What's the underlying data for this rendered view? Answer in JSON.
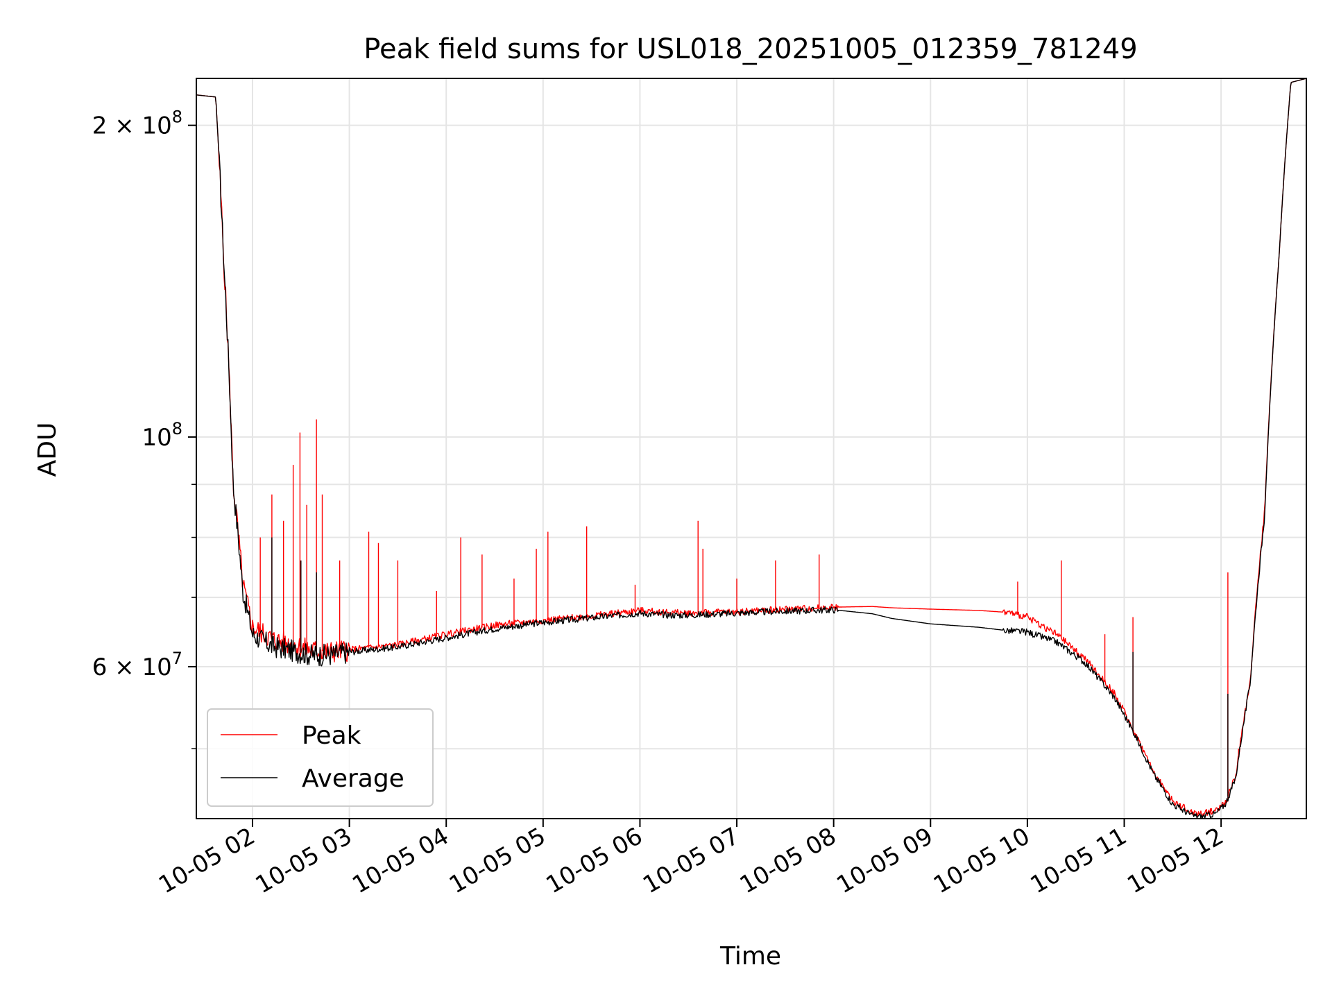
{
  "chart_data": {
    "type": "line",
    "title": "Peak field sums for USL018_20251005_012359_781249",
    "xlabel": "Time",
    "ylabel": "ADU",
    "yscale": "log",
    "ylim": [
      42800000,
      222000000
    ],
    "xlim_hours": [
      1.42,
      12.88
    ],
    "x_ticks": [
      {
        "hour": 2,
        "label": "10-05 02"
      },
      {
        "hour": 3,
        "label": "10-05 03"
      },
      {
        "hour": 4,
        "label": "10-05 04"
      },
      {
        "hour": 5,
        "label": "10-05 05"
      },
      {
        "hour": 6,
        "label": "10-05 06"
      },
      {
        "hour": 7,
        "label": "10-05 07"
      },
      {
        "hour": 8,
        "label": "10-05 08"
      },
      {
        "hour": 9,
        "label": "10-05 09"
      },
      {
        "hour": 10,
        "label": "10-05 10"
      },
      {
        "hour": 11,
        "label": "10-05 11"
      },
      {
        "hour": 12,
        "label": "10-05 12"
      }
    ],
    "y_major_ticks": [
      {
        "value": 60000000,
        "mant": "6",
        "exp": "7"
      },
      {
        "value": 100000000,
        "mant": "",
        "exp": "8"
      },
      {
        "value": 200000000,
        "mant": "2",
        "exp": "8"
      }
    ],
    "y_minor_grid": [
      50000000,
      70000000,
      80000000,
      90000000
    ],
    "grid": true,
    "legend_position": "lower-left",
    "series": [
      {
        "name": "Peak",
        "color": "#ff0000",
        "x_hours": [
          1.42,
          1.62,
          1.7,
          1.8,
          1.9,
          2.0,
          2.2,
          2.4,
          2.6,
          2.8,
          3.0,
          3.5,
          4.0,
          4.5,
          5.0,
          5.5,
          6.0,
          6.3,
          6.5,
          7.0,
          7.5,
          8.0,
          8.4,
          8.6,
          9.0,
          9.5,
          9.8,
          10.0,
          10.3,
          10.6,
          10.9,
          11.1,
          11.3,
          11.5,
          11.7,
          11.8,
          11.95,
          12.05,
          12.15,
          12.3,
          12.45,
          12.6,
          12.72,
          12.88
        ],
        "values": [
          214000000,
          213000000,
          150000000,
          90000000,
          72000000,
          65500000,
          63800000,
          63000000,
          62300000,
          62000000,
          62300000,
          63000000,
          64500000,
          65800000,
          66500000,
          67200000,
          68000000,
          67700000,
          67600000,
          67800000,
          68200000,
          68500000,
          68600000,
          68400000,
          68200000,
          68000000,
          67700000,
          67000000,
          64500000,
          61000000,
          56500000,
          52000000,
          47500000,
          44500000,
          43400000,
          43300000,
          43600000,
          44500000,
          47000000,
          58000000,
          85000000,
          150000000,
          220000000,
          222000000
        ],
        "spikes": [
          {
            "hour": 2.08,
            "value": 80000000
          },
          {
            "hour": 2.2,
            "value": 88000000
          },
          {
            "hour": 2.32,
            "value": 83000000
          },
          {
            "hour": 2.42,
            "value": 94000000
          },
          {
            "hour": 2.49,
            "value": 101000000
          },
          {
            "hour": 2.56,
            "value": 86000000
          },
          {
            "hour": 2.66,
            "value": 104000000
          },
          {
            "hour": 2.72,
            "value": 88000000
          },
          {
            "hour": 2.9,
            "value": 76000000
          },
          {
            "hour": 3.2,
            "value": 81000000
          },
          {
            "hour": 3.3,
            "value": 79000000
          },
          {
            "hour": 3.5,
            "value": 76000000
          },
          {
            "hour": 3.9,
            "value": 71000000
          },
          {
            "hour": 4.15,
            "value": 80000000
          },
          {
            "hour": 4.37,
            "value": 77000000
          },
          {
            "hour": 4.7,
            "value": 73000000
          },
          {
            "hour": 4.93,
            "value": 78000000
          },
          {
            "hour": 5.05,
            "value": 81000000
          },
          {
            "hour": 5.45,
            "value": 82000000
          },
          {
            "hour": 5.95,
            "value": 72000000
          },
          {
            "hour": 6.6,
            "value": 83000000
          },
          {
            "hour": 6.65,
            "value": 78000000
          },
          {
            "hour": 7.0,
            "value": 73000000
          },
          {
            "hour": 7.4,
            "value": 76000000
          },
          {
            "hour": 7.85,
            "value": 77000000
          },
          {
            "hour": 9.9,
            "value": 72500000
          },
          {
            "hour": 10.35,
            "value": 76000000
          },
          {
            "hour": 10.8,
            "value": 64500000
          },
          {
            "hour": 11.09,
            "value": 67000000
          },
          {
            "hour": 11.9,
            "value": 43800000
          },
          {
            "hour": 12.02,
            "value": 44000000
          },
          {
            "hour": 12.07,
            "value": 74000000
          },
          {
            "hour": 12.18,
            "value": 50000000
          }
        ]
      },
      {
        "name": "Average",
        "color": "#000000",
        "x_hours": [
          1.42,
          1.62,
          1.7,
          1.8,
          1.9,
          2.0,
          2.2,
          2.4,
          2.6,
          2.8,
          3.0,
          3.5,
          4.0,
          4.5,
          5.0,
          5.5,
          6.0,
          6.3,
          6.5,
          7.0,
          7.5,
          8.0,
          8.4,
          8.6,
          9.0,
          9.5,
          9.8,
          10.0,
          10.3,
          10.6,
          10.9,
          11.1,
          11.3,
          11.5,
          11.7,
          11.8,
          11.95,
          12.05,
          12.15,
          12.3,
          12.45,
          12.6,
          12.72,
          12.88
        ],
        "values": [
          214000000,
          213000000,
          150000000,
          90000000,
          71000000,
          64500000,
          62800000,
          62200000,
          61600000,
          61600000,
          62000000,
          62700000,
          64000000,
          65300000,
          66200000,
          66900000,
          67600000,
          67300000,
          67300000,
          67600000,
          67900000,
          68100000,
          67500000,
          66800000,
          66000000,
          65500000,
          65000000,
          64800000,
          63400000,
          60500000,
          56000000,
          51800000,
          47300000,
          44200000,
          43100000,
          43000000,
          43300000,
          44300000,
          46800000,
          57800000,
          84000000,
          150000000,
          220000000,
          222000000
        ],
        "spikes": [
          {
            "hour": 2.2,
            "value": 80000000
          },
          {
            "hour": 2.5,
            "value": 76000000
          },
          {
            "hour": 2.66,
            "value": 74000000
          },
          {
            "hour": 12.07,
            "value": 56500000
          },
          {
            "hour": 11.09,
            "value": 62000000
          }
        ]
      }
    ]
  }
}
